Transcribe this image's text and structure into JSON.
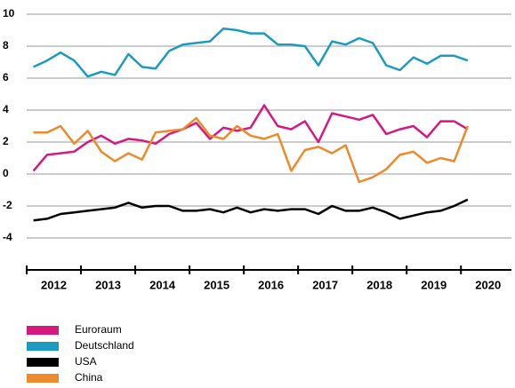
{
  "chart_data": {
    "type": "line",
    "x": [
      2012.125,
      2012.375,
      2012.625,
      2012.875,
      2013.125,
      2013.375,
      2013.625,
      2013.875,
      2014.125,
      2014.375,
      2014.625,
      2014.875,
      2015.125,
      2015.375,
      2015.625,
      2015.875,
      2016.125,
      2016.375,
      2016.625,
      2016.875,
      2017.125,
      2017.375,
      2017.625,
      2017.875,
      2018.125,
      2018.375,
      2018.625,
      2018.875,
      2019.125,
      2019.375,
      2019.625,
      2019.875,
      2020.125
    ],
    "series": [
      {
        "name": "Euroraum",
        "color": "#d6197f",
        "values": [
          0.2,
          1.2,
          1.3,
          1.4,
          2.0,
          2.4,
          1.9,
          2.2,
          2.1,
          1.9,
          2.5,
          2.8,
          3.2,
          2.2,
          2.9,
          2.7,
          2.9,
          4.3,
          3.0,
          2.8,
          3.3,
          2.0,
          3.8,
          3.6,
          3.4,
          3.7,
          2.5,
          2.8,
          3.0,
          2.3,
          3.3,
          3.3,
          2.8
        ]
      },
      {
        "name": "Deutschland",
        "color": "#1a9bbf",
        "values": [
          6.7,
          7.1,
          7.6,
          7.1,
          6.1,
          6.4,
          6.2,
          7.5,
          6.7,
          6.6,
          7.7,
          8.1,
          8.2,
          8.3,
          9.1,
          9.0,
          8.8,
          8.8,
          8.1,
          8.1,
          8.0,
          6.8,
          8.3,
          8.1,
          8.5,
          8.2,
          6.8,
          6.5,
          7.3,
          6.9,
          7.4,
          7.4,
          7.1
        ]
      },
      {
        "name": "USA",
        "color": "#000000",
        "values": [
          -2.9,
          -2.8,
          -2.5,
          -2.4,
          -2.3,
          -2.2,
          -2.1,
          -1.8,
          -2.1,
          -2.0,
          -2.0,
          -2.3,
          -2.3,
          -2.2,
          -2.4,
          -2.1,
          -2.4,
          -2.2,
          -2.3,
          -2.2,
          -2.2,
          -2.5,
          -2.0,
          -2.3,
          -2.3,
          -2.1,
          -2.4,
          -2.8,
          -2.6,
          -2.4,
          -2.3,
          -2.0,
          -1.6
        ]
      },
      {
        "name": "China",
        "color": "#ef8a2a",
        "values": [
          2.6,
          2.6,
          3.0,
          1.9,
          2.7,
          1.4,
          0.8,
          1.3,
          0.9,
          2.6,
          2.7,
          2.8,
          3.5,
          2.4,
          2.2,
          3.0,
          2.4,
          2.2,
          2.5,
          0.2,
          1.5,
          1.7,
          1.3,
          1.8,
          -0.5,
          -0.2,
          0.3,
          1.2,
          1.4,
          0.7,
          1.0,
          0.8,
          3.0
        ]
      }
    ],
    "xlim": [
      2012,
      2020.93
    ],
    "xticks": [
      {
        "value": 2012.5,
        "label": "2012"
      },
      {
        "value": 2013.5,
        "label": "2013"
      },
      {
        "value": 2014.5,
        "label": "2014"
      },
      {
        "value": 2015.5,
        "label": "2015"
      },
      {
        "value": 2016.5,
        "label": "2016"
      },
      {
        "value": 2017.5,
        "label": "2017"
      },
      {
        "value": 2018.5,
        "label": "2018"
      },
      {
        "value": 2019.5,
        "label": "2019"
      },
      {
        "value": 2020.5,
        "label": "2020"
      }
    ],
    "ylim": [
      -6,
      10
    ],
    "yticks": [
      -4,
      -2,
      0,
      2,
      4,
      6,
      8,
      10
    ],
    "grid": true,
    "legend": "bottom-left"
  }
}
